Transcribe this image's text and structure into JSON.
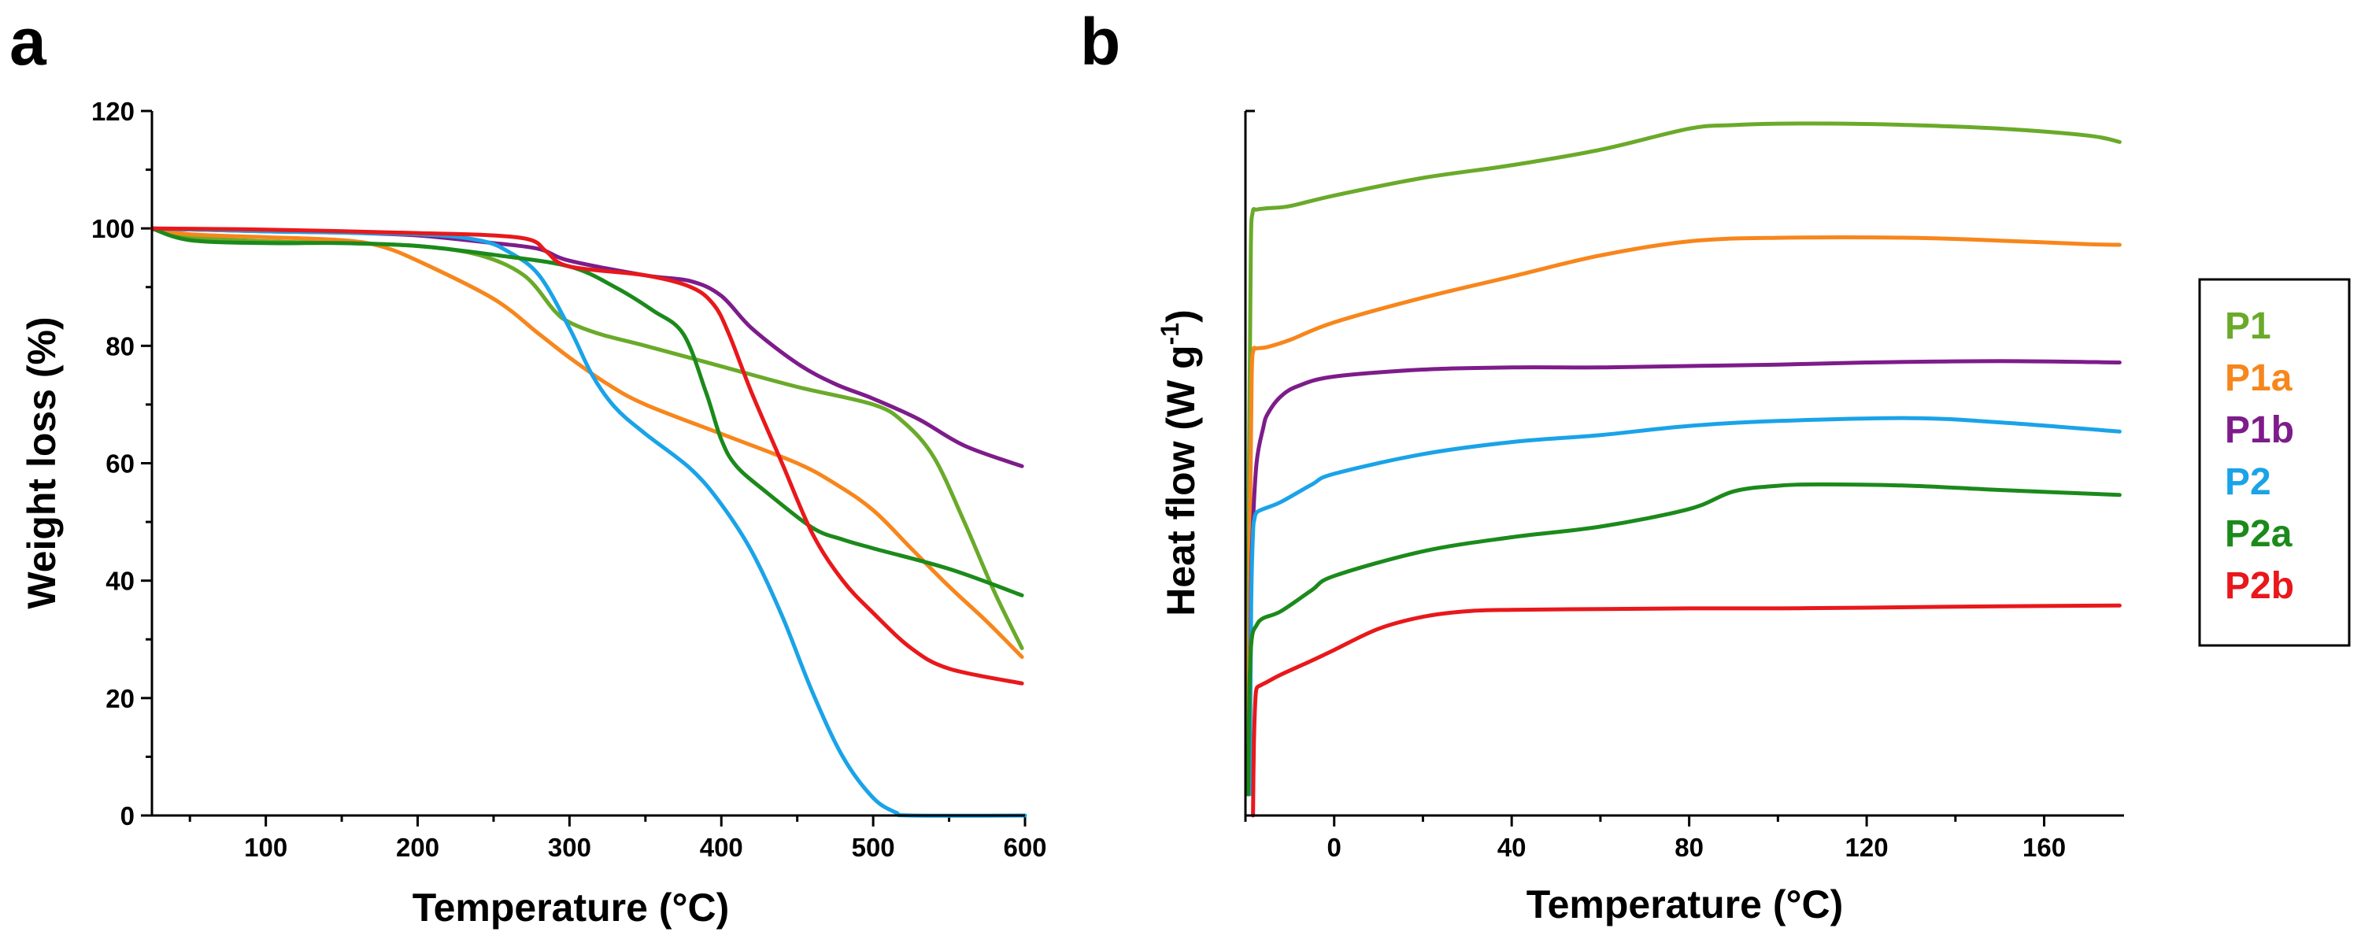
{
  "chart_data": [
    {
      "panel": "a",
      "type": "line",
      "title": "",
      "xlabel": "Temperature (°C)",
      "ylabel": "Weight loss (%)",
      "xlim": [
        25,
        600
      ],
      "ylim": [
        0,
        120
      ],
      "xticks": [
        100,
        200,
        300,
        400,
        500,
        600
      ],
      "yticks": [
        0,
        20,
        40,
        60,
        80,
        100,
        120
      ],
      "series": [
        {
          "name": "P1",
          "color": "#6aaa2a",
          "x": [
            25,
            50,
            100,
            150,
            200,
            240,
            270,
            290,
            300,
            320,
            350,
            400,
            450,
            500,
            520,
            540,
            560,
            580,
            598
          ],
          "y": [
            100,
            98.5,
            97.8,
            97.5,
            97,
            95.5,
            92,
            86,
            84,
            82,
            80,
            76.5,
            73,
            70,
            67,
            61,
            50,
            38,
            28.5
          ]
        },
        {
          "name": "P1a",
          "color": "#f7861c",
          "x": [
            25,
            50,
            100,
            150,
            175,
            200,
            250,
            280,
            300,
            325,
            350,
            400,
            450,
            475,
            500,
            525,
            550,
            575,
            598
          ],
          "y": [
            100,
            99,
            98.5,
            98,
            97,
            94.5,
            88,
            82,
            78,
            73.5,
            70,
            65,
            60,
            56.5,
            52,
            45.5,
            39,
            33,
            27
          ]
        },
        {
          "name": "P1b",
          "color": "#7d1c8a",
          "x": [
            25,
            100,
            150,
            200,
            250,
            280,
            300,
            350,
            380,
            400,
            420,
            450,
            475,
            500,
            530,
            560,
            598
          ],
          "y": [
            100,
            99.5,
            99.3,
            98.8,
            97.5,
            96.5,
            94.5,
            92,
            91,
            88.5,
            83,
            77,
            73.5,
            71,
            67.5,
            63,
            59.5
          ]
        },
        {
          "name": "P2",
          "color": "#1aa3e8",
          "x": [
            25,
            100,
            200,
            240,
            260,
            280,
            300,
            315,
            330,
            350,
            380,
            400,
            420,
            440,
            460,
            480,
            500,
            515,
            525,
            600
          ],
          "y": [
            100,
            99.5,
            99,
            98,
            96,
            92,
            83,
            75,
            69.5,
            65,
            59,
            53,
            45,
            34,
            21,
            10,
            3,
            0.5,
            0,
            0
          ]
        },
        {
          "name": "P2a",
          "color": "#1b8a1b",
          "x": [
            25,
            50,
            100,
            150,
            200,
            250,
            300,
            330,
            355,
            375,
            390,
            400,
            410,
            430,
            460,
            480,
            500,
            550,
            598
          ],
          "y": [
            100,
            98,
            97.5,
            97.5,
            97,
            95.5,
            93.5,
            90,
            86,
            82,
            72,
            64,
            59.5,
            55,
            49,
            47,
            45.5,
            42,
            37.5
          ]
        },
        {
          "name": "P2b",
          "color": "#e8181b",
          "x": [
            25,
            100,
            200,
            250,
            275,
            285,
            300,
            350,
            380,
            395,
            405,
            420,
            440,
            460,
            480,
            500,
            525,
            550,
            598
          ],
          "y": [
            100,
            99.8,
            99.2,
            98.8,
            98,
            96,
            93.5,
            92,
            90,
            87,
            82,
            72,
            60,
            48,
            40,
            34.5,
            28.5,
            25,
            22.5
          ]
        }
      ]
    },
    {
      "panel": "b",
      "type": "line",
      "title": "",
      "xlabel": "Temperature (°C)",
      "ylabel": "Heat flow (W g",
      "ylabel_superscript": "-1",
      "ylabel_suffix": ")",
      "xlim": [
        -20,
        178
      ],
      "ylim": [
        0,
        100
      ],
      "xticks": [
        0,
        40,
        80,
        120,
        160
      ],
      "yticks": [],
      "series": [
        {
          "name": "P1",
          "color": "#6aaa2a",
          "x": [
            -19.5,
            -19.2,
            -18.8,
            -18.4,
            -17.5,
            -15,
            -10,
            0,
            20,
            40,
            60,
            80,
            90,
            100,
            115,
            130,
            150,
            170,
            177
          ],
          "y": [
            3,
            50,
            80,
            85.5,
            86,
            86.2,
            86.5,
            88,
            90.5,
            92.3,
            94.5,
            97.5,
            98,
            98.2,
            98.2,
            98,
            97.5,
            96.5,
            95.6
          ]
        },
        {
          "name": "P1a",
          "color": "#f7861c",
          "x": [
            -19.3,
            -19,
            -18.6,
            -18.2,
            -17.5,
            -15,
            -10,
            0,
            20,
            40,
            60,
            80,
            100,
            130,
            150,
            170,
            177
          ],
          "y": [
            3,
            40,
            62,
            66,
            66.3,
            66.5,
            67.5,
            70,
            73.5,
            76.5,
            79.5,
            81.5,
            82,
            82,
            81.6,
            81.1,
            81
          ]
        },
        {
          "name": "P1b",
          "color": "#7d1c8a",
          "x": [
            -19.1,
            -18.8,
            -18.4,
            -17.5,
            -16,
            -15,
            -12,
            -8,
            0,
            20,
            40,
            60,
            80,
            100,
            120,
            150,
            177
          ],
          "y": [
            3,
            30,
            40,
            50,
            55,
            57,
            59.5,
            61,
            62.3,
            63.3,
            63.6,
            63.6,
            63.8,
            64,
            64.3,
            64.5,
            64.3
          ]
        },
        {
          "name": "P2",
          "color": "#1aa3e8",
          "x": [
            -19,
            -18.7,
            -18.3,
            -18,
            -17.5,
            -16,
            -12,
            -5,
            0,
            20,
            40,
            60,
            80,
            100,
            130,
            150,
            177
          ],
          "y": [
            3,
            30,
            40,
            42,
            43,
            43.5,
            44.5,
            47,
            48.5,
            51.3,
            53,
            54,
            55.3,
            56,
            56.4,
            55.8,
            54.5
          ]
        },
        {
          "name": "P2a",
          "color": "#1b8a1b",
          "x": [
            -19.4,
            -19.1,
            -18.6,
            -17.5,
            -16,
            -12,
            -5,
            0,
            20,
            40,
            60,
            80,
            90,
            100,
            110,
            130,
            150,
            177
          ],
          "y": [
            3,
            18,
            25,
            27,
            28,
            29,
            32,
            34,
            37.5,
            39.5,
            41,
            43.5,
            46,
            46.8,
            47,
            46.8,
            46.2,
            45.5
          ]
        },
        {
          "name": "P2b",
          "color": "#e8181b",
          "x": [
            -18.3,
            -18.1,
            -17.8,
            -17.5,
            -16.5,
            -15,
            -12,
            -5,
            0,
            10,
            20,
            30,
            40,
            60,
            80,
            100,
            120,
            150,
            177
          ],
          "y": [
            0,
            10,
            16,
            18,
            18.5,
            19,
            20,
            22,
            23.5,
            26.5,
            28.2,
            29,
            29.2,
            29.3,
            29.4,
            29.4,
            29.5,
            29.7,
            29.8
          ]
        }
      ]
    }
  ],
  "legend": {
    "items": [
      {
        "label": "P1",
        "color": "#6aaa2a"
      },
      {
        "label": "P1a",
        "color": "#f7861c"
      },
      {
        "label": "P1b",
        "color": "#7d1c8a"
      },
      {
        "label": "P2",
        "color": "#1aa3e8"
      },
      {
        "label": "P2a",
        "color": "#1b8a1b"
      },
      {
        "label": "P2b",
        "color": "#e8181b"
      }
    ]
  }
}
